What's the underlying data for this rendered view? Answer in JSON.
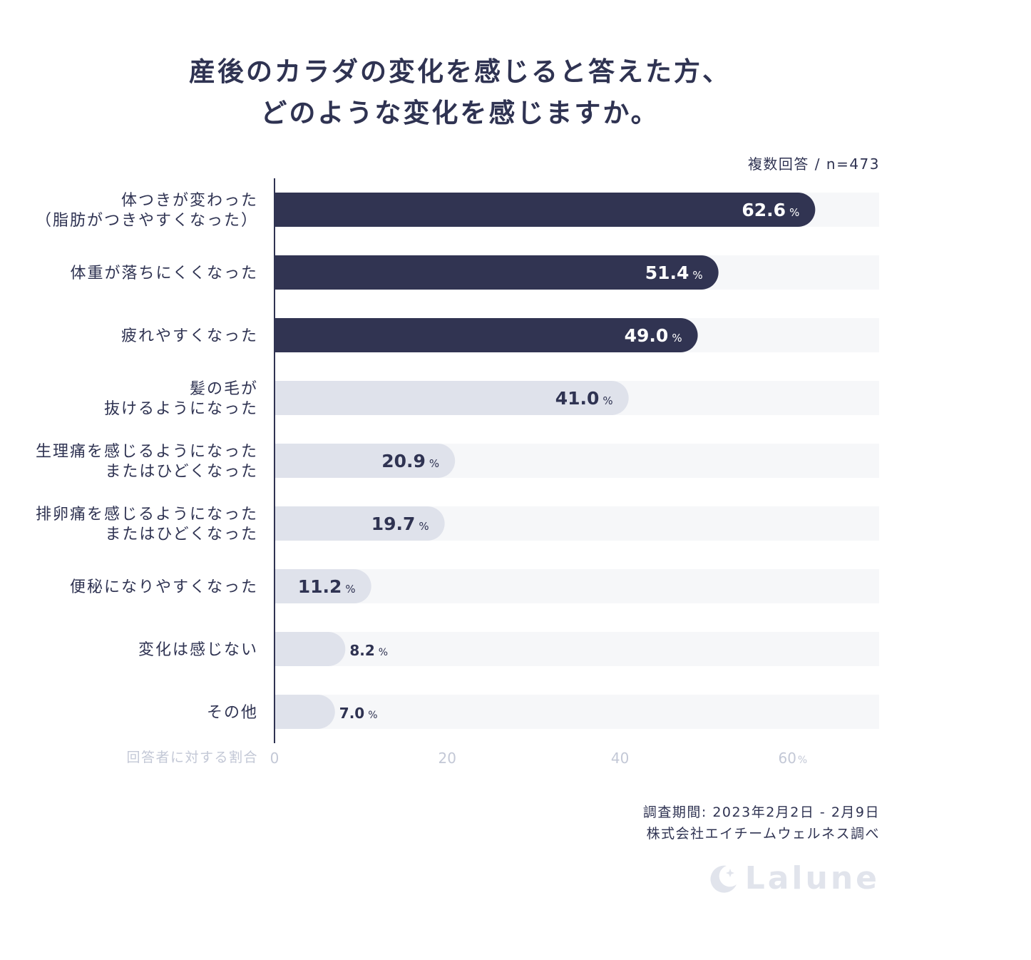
{
  "title_lines": [
    "産後のカラダの変化を感じると答えた方、",
    "どのような変化を感じますか。"
  ],
  "note": "複数回答 / n=473",
  "source_lines": [
    "調査期間: 2023年2月2日 - 2月9日",
    "株式会社エイチームウェルネス調べ"
  ],
  "brand": {
    "name": "Lalune",
    "color": "#e1e4ec"
  },
  "colors": {
    "dark_bar": "#313452",
    "light_bar": "#dfe2eb",
    "track": "#f6f7f9",
    "axis_line": "#2f3352",
    "tick_text": "#c3c8d6",
    "dark_text": "#2f3352",
    "white_text": "#ffffff"
  },
  "chart_data": {
    "type": "bar",
    "orientation": "horizontal",
    "title": "産後のカラダの変化を感じると答えた方、どのような変化を感じますか。",
    "xlabel": "回答者に対する割合",
    "ylabel": "",
    "xlim": [
      0,
      70
    ],
    "x_ticks": [
      "0",
      "20",
      "40",
      "60"
    ],
    "x_unit": "%",
    "grid": false,
    "categories": [
      [
        "体つきが変わった",
        "（脂肪がつきやすくなった）"
      ],
      [
        "体重が落ちにくくなった"
      ],
      [
        "疲れやすくなった"
      ],
      [
        "髪の毛が",
        "抜けるようになった"
      ],
      [
        "生理痛を感じるようになった",
        "またはひどくなった"
      ],
      [
        "排卵痛を感じるようになった",
        "またはひどくなった"
      ],
      [
        "便秘になりやすくなった"
      ],
      [
        "変化は感じない"
      ],
      [
        "その他"
      ]
    ],
    "values": [
      62.6,
      51.4,
      49.0,
      41.0,
      20.9,
      19.7,
      11.2,
      8.2,
      7.0
    ],
    "value_labels": [
      "62.6",
      "51.4",
      "49.0",
      "41.0",
      "20.9",
      "19.7",
      "11.2",
      "8.2",
      "7.0"
    ],
    "value_unit": "%",
    "highlight_top": 3
  }
}
